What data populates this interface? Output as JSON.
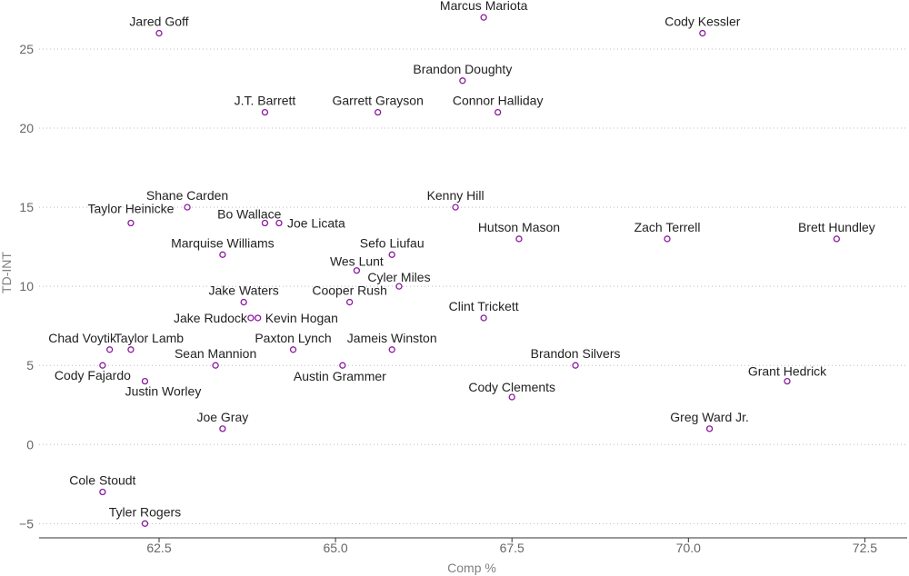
{
  "chart_data": {
    "type": "scatter",
    "xlabel": "Comp %",
    "ylabel": "TD-INT",
    "xlim": [
      60.8,
      73.1
    ],
    "ylim": [
      -5.9,
      28.1
    ],
    "xticks": [
      "62.5",
      "65.0",
      "67.5",
      "70.0",
      "72.5"
    ],
    "yticks": [
      "−5",
      "0",
      "5",
      "10",
      "15",
      "20",
      "25"
    ],
    "grid": "horizontal-dotted",
    "marker_color": "#8b1a9e",
    "points": [
      {
        "name": "Jared Goff",
        "x": 62.5,
        "y": 26
      },
      {
        "name": "Marcus Mariota",
        "x": 67.1,
        "y": 27
      },
      {
        "name": "Cody Kessler",
        "x": 70.2,
        "y": 26
      },
      {
        "name": "Brandon Doughty",
        "x": 66.8,
        "y": 23
      },
      {
        "name": "J.T. Barrett",
        "x": 64.0,
        "y": 21
      },
      {
        "name": "Garrett Grayson",
        "x": 65.6,
        "y": 21
      },
      {
        "name": "Connor Halliday",
        "x": 67.3,
        "y": 21
      },
      {
        "name": "Shane Carden",
        "x": 62.9,
        "y": 15
      },
      {
        "name": "Kenny Hill",
        "x": 66.7,
        "y": 15
      },
      {
        "name": "Taylor Heinicke",
        "x": 62.1,
        "y": 14
      },
      {
        "name": "Bo Wallace",
        "x": 64.0,
        "y": 14
      },
      {
        "name": "Joe Licata",
        "x": 64.2,
        "y": 14
      },
      {
        "name": "Marquise Williams",
        "x": 63.4,
        "y": 12
      },
      {
        "name": "Hutson Mason",
        "x": 67.6,
        "y": 13
      },
      {
        "name": "Zach Terrell",
        "x": 69.7,
        "y": 13
      },
      {
        "name": "Brett Hundley",
        "x": 72.1,
        "y": 13
      },
      {
        "name": "Sefo Liufau",
        "x": 65.8,
        "y": 12
      },
      {
        "name": "Wes Lunt",
        "x": 65.3,
        "y": 11
      },
      {
        "name": "Cyler Miles",
        "x": 65.9,
        "y": 10
      },
      {
        "name": "Jake Waters",
        "x": 63.7,
        "y": 9
      },
      {
        "name": "Cooper Rush",
        "x": 65.2,
        "y": 9
      },
      {
        "name": "Clint Trickett",
        "x": 67.1,
        "y": 8
      },
      {
        "name": "Jake Rudock",
        "x": 63.8,
        "y": 8
      },
      {
        "name": "Kevin Hogan",
        "x": 63.9,
        "y": 8
      },
      {
        "name": "Chad Voytik",
        "x": 61.8,
        "y": 6
      },
      {
        "name": "Taylor Lamb",
        "x": 62.1,
        "y": 6
      },
      {
        "name": "Paxton Lynch",
        "x": 64.4,
        "y": 6
      },
      {
        "name": "Jameis Winston",
        "x": 65.8,
        "y": 6
      },
      {
        "name": "Sean Mannion",
        "x": 63.3,
        "y": 5
      },
      {
        "name": "Austin Grammer",
        "x": 65.1,
        "y": 5
      },
      {
        "name": "Brandon Silvers",
        "x": 68.4,
        "y": 5
      },
      {
        "name": "Cody Fajardo",
        "x": 61.7,
        "y": 5
      },
      {
        "name": "Justin Worley",
        "x": 62.3,
        "y": 4
      },
      {
        "name": "Grant Hedrick",
        "x": 71.4,
        "y": 4
      },
      {
        "name": "Cody Clements",
        "x": 67.5,
        "y": 3
      },
      {
        "name": "Joe Gray",
        "x": 63.4,
        "y": 1
      },
      {
        "name": "Greg Ward Jr.",
        "x": 70.3,
        "y": 1
      },
      {
        "name": "Cole Stoudt",
        "x": 61.7,
        "y": -3
      },
      {
        "name": "Tyler Rogers",
        "x": 62.3,
        "y": -5
      }
    ]
  }
}
